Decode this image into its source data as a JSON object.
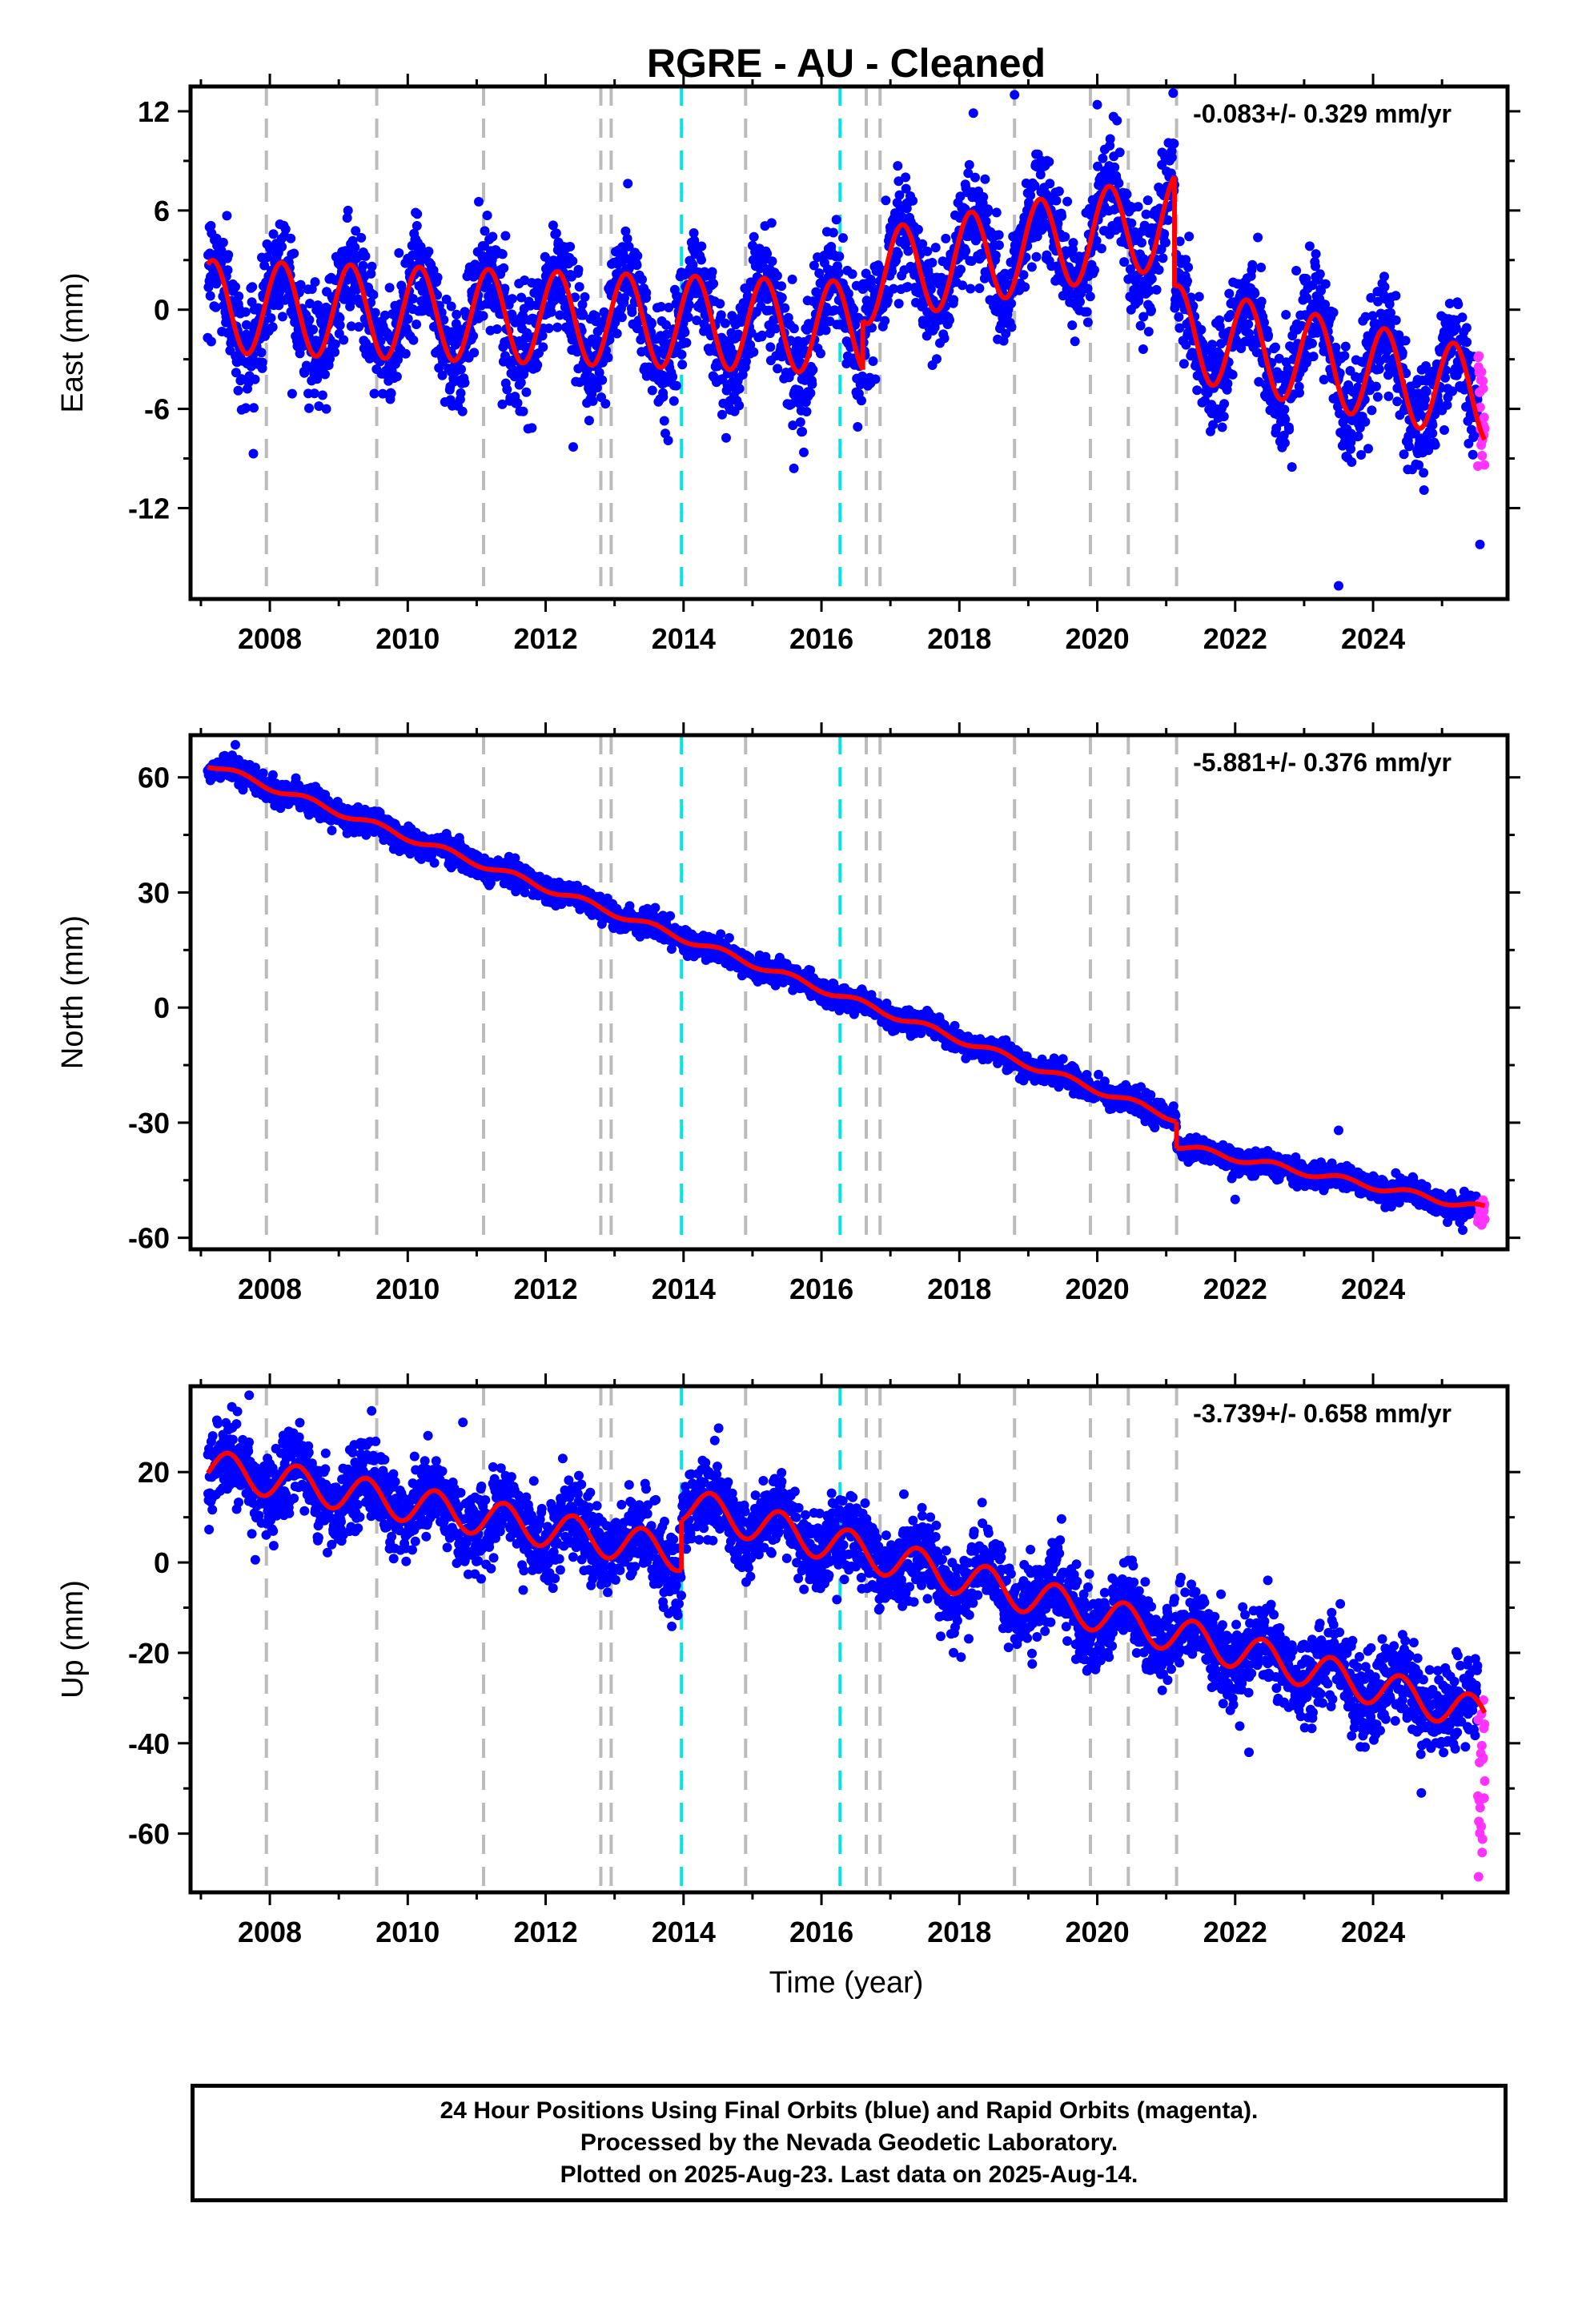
{
  "title": "RGRE  - AU - Cleaned",
  "footer": {
    "line1": "24 Hour Positions Using Final Orbits (blue) and Rapid Orbits (magenta).",
    "line2": "Processed by the Nevada Geodetic Laboratory.",
    "line3": "Plotted on 2025-Aug-23. Last data on 2025-Aug-14."
  },
  "colors": {
    "final_orbits": "#0000ff",
    "rapid_orbits": "#ff33ff",
    "model": "#ff0000",
    "offset_line": "#bbbbbb",
    "equipment_line": "#00e5e5"
  },
  "chart_data": [
    {
      "type": "scatter",
      "id": "east",
      "ylabel": "East (mm)",
      "rate": "-0.083+/- 0.329 mm/yr",
      "xlim": [
        2006.85,
        2025.95
      ],
      "ylim": [
        -17.5,
        13.5
      ],
      "xticks": [
        2008,
        2010,
        2012,
        2014,
        2016,
        2018,
        2020,
        2022,
        2024
      ],
      "yticks": [
        12,
        6,
        0,
        -6,
        -12
      ],
      "ytick_labels": [
        "12",
        "6",
        "0",
        "-6",
        "-12"
      ],
      "grid": false,
      "model": {
        "start": 2007.1,
        "end": 2025.62,
        "amplitude": 2.8,
        "phase": 0.92,
        "segments": [
          {
            "from": 2007.1,
            "to": 2016.6,
            "level_start": 0.2,
            "level_end": -1.1
          },
          {
            "from": 2016.6,
            "to": 2021.12,
            "level_start": 1.9,
            "level_end": 5.4
          },
          {
            "from": 2021.12,
            "to": 2025.62,
            "level_start": -1.3,
            "level_end": -5.2
          }
        ]
      },
      "scatter": {
        "sigma": 1.6,
        "final_end": 2025.52,
        "rapid_from": 2025.52,
        "rapid_min": -9.5,
        "rapid_max": -2.0
      },
      "outliers": [
        [
          2018.8,
          13.0
        ],
        [
          2020.0,
          12.4
        ],
        [
          2021.1,
          13.1
        ],
        [
          2012.4,
          -8.3
        ],
        [
          2015.6,
          -9.6
        ],
        [
          2023.5,
          -16.7
        ],
        [
          2025.55,
          -14.2
        ]
      ],
      "vlines_gray": [
        2007.95,
        2009.55,
        2011.1,
        2012.8,
        2012.95,
        2014.9,
        2016.65,
        2016.85,
        2018.8,
        2019.9,
        2020.45,
        2021.15
      ],
      "vlines_cyan": [
        2013.97,
        2016.27
      ]
    },
    {
      "type": "scatter",
      "id": "north",
      "ylabel": "North (mm)",
      "rate": "-5.881+/- 0.376 mm/yr",
      "xlim": [
        2006.85,
        2025.95
      ],
      "ylim": [
        -63,
        71
      ],
      "xticks": [
        2008,
        2010,
        2012,
        2014,
        2016,
        2018,
        2020,
        2022,
        2024
      ],
      "yticks": [
        60,
        30,
        0,
        -30,
        -60
      ],
      "ytick_labels": [
        "60",
        "30",
        "0",
        "-30",
        "-60"
      ],
      "grid": false,
      "model": {
        "start": 2007.1,
        "end": 2025.62,
        "amplitude": 0.9,
        "phase": 0.3,
        "segments": [
          {
            "from": 2007.1,
            "to": 2021.15,
            "level_start": 63.5,
            "level_end": -29.0
          },
          {
            "from": 2021.15,
            "to": 2025.62,
            "level_start": -36.0,
            "level_end": -52.5
          }
        ]
      },
      "scatter": {
        "sigma": 1.5,
        "final_end": 2025.52,
        "rapid_from": 2025.52,
        "rapid_min": -57,
        "rapid_max": -50
      },
      "outliers": [
        [
          2007.5,
          68.5
        ],
        [
          2023.5,
          -32.0
        ],
        [
          2022.0,
          -50.0
        ],
        [
          2025.3,
          -58.0
        ]
      ],
      "vlines_gray": [
        2007.95,
        2009.55,
        2011.1,
        2012.8,
        2012.95,
        2014.9,
        2016.65,
        2016.85,
        2018.8,
        2019.9,
        2020.45,
        2021.15
      ],
      "vlines_cyan": [
        2013.97,
        2016.27
      ]
    },
    {
      "type": "scatter",
      "id": "up",
      "ylabel": "Up (mm)",
      "rate": "-3.739+/- 0.658 mm/yr",
      "xlim": [
        2006.85,
        2025.95
      ],
      "ylim": [
        -73,
        39
      ],
      "xticks": [
        2008,
        2010,
        2012,
        2014,
        2016,
        2018,
        2020,
        2022,
        2024
      ],
      "yticks": [
        20,
        0,
        -20,
        -40,
        -60
      ],
      "ytick_labels": [
        "20",
        "0",
        "-20",
        "-40",
        "-60"
      ],
      "grid": false,
      "model": {
        "start": 2007.1,
        "end": 2025.62,
        "amplitude": 4.0,
        "phase": 0.15,
        "segments": [
          {
            "from": 2007.1,
            "to": 2013.97,
            "level_start": 21.0,
            "level_end": 2.0
          },
          {
            "from": 2013.97,
            "to": 2025.62,
            "level_start": 13.0,
            "level_end": -34.0
          }
        ]
      },
      "scatter": {
        "sigma": 4.5,
        "final_end": 2025.52,
        "rapid_from": 2025.52,
        "rapid_min": -72,
        "rapid_max": -27
      },
      "outliers": [
        [
          2007.7,
          37.0
        ],
        [
          2010.8,
          31.0
        ],
        [
          2024.7,
          -51.0
        ],
        [
          2022.2,
          -42.0
        ]
      ],
      "vlines_gray": [
        2007.95,
        2009.55,
        2011.1,
        2012.8,
        2012.95,
        2014.9,
        2016.65,
        2016.85,
        2018.8,
        2019.9,
        2020.45,
        2021.15
      ],
      "vlines_cyan": [
        2013.97,
        2016.27
      ]
    }
  ],
  "xlabel": "Time (year)"
}
